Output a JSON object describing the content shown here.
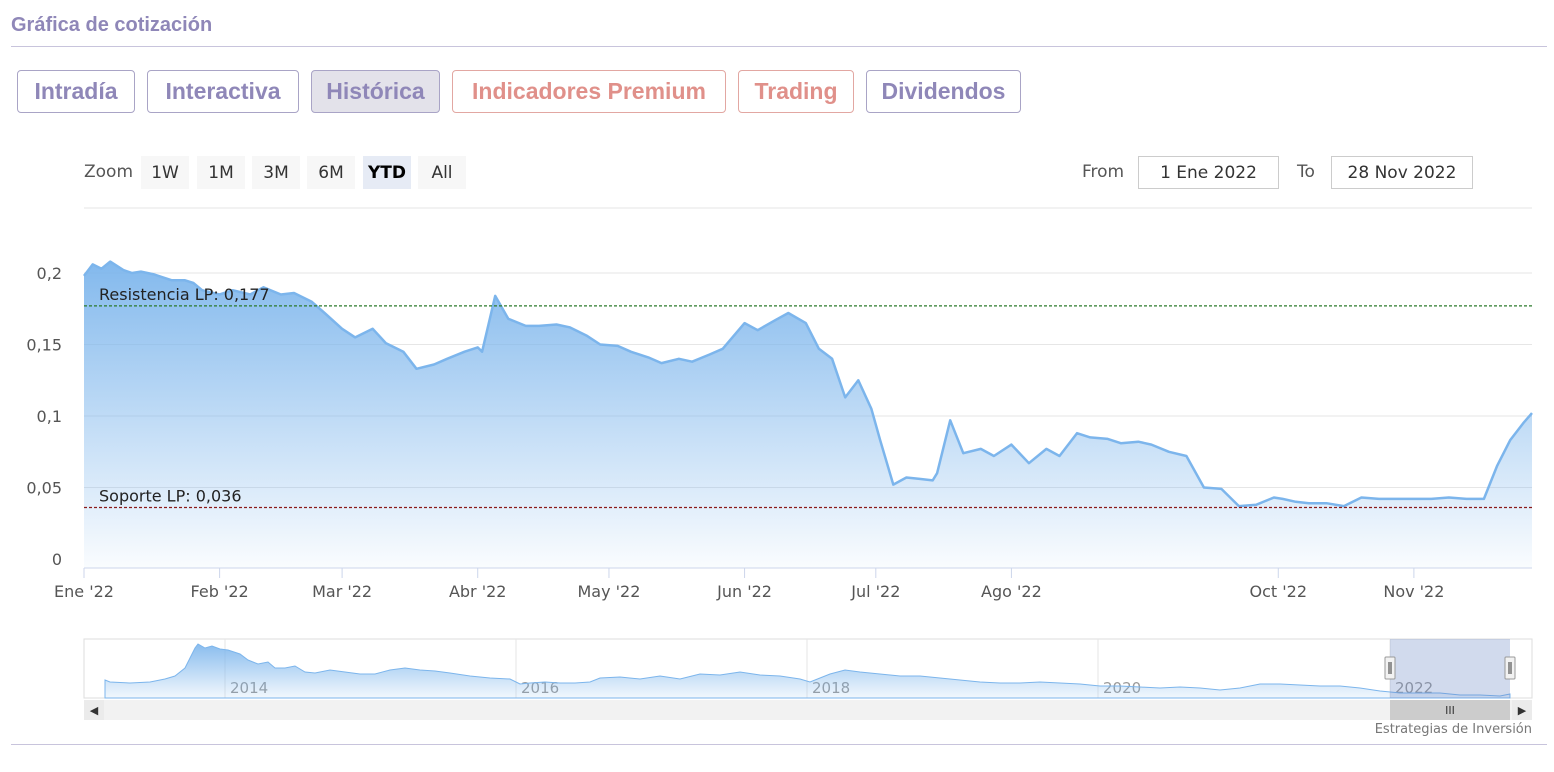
{
  "section": {
    "title": "Gráfica de cotización"
  },
  "tabs": [
    {
      "label": "Intradía",
      "style": "normal"
    },
    {
      "label": "Interactiva",
      "style": "normal"
    },
    {
      "label": "Histórica",
      "style": "active"
    },
    {
      "label": "Indicadores Premium",
      "style": "premium"
    },
    {
      "label": "Trading",
      "style": "premium"
    },
    {
      "label": "Dividendos",
      "style": "normal"
    }
  ],
  "zoom": {
    "label": "Zoom",
    "buttons": [
      "1W",
      "1M",
      "3M",
      "6M",
      "YTD",
      "All"
    ],
    "active": "YTD"
  },
  "range": {
    "from_label": "From",
    "from_value": "1 Ene 2022",
    "to_label": "To",
    "to_value": "28 Nov 2022"
  },
  "navigator": {
    "years": [
      "2014",
      "2016",
      "2018",
      "2020",
      "2022"
    ],
    "scroll_grip": "III"
  },
  "watermark": "Estrategias de Inversión",
  "colors": {
    "accent": "#8f87b8",
    "premium": "#e0908a",
    "series": "#7cb5ec",
    "resistance": "#2b7a2b",
    "support": "#8b1a1a"
  },
  "chart_data": {
    "type": "area",
    "x_start": "2022-01-01",
    "x_end": "2022-11-28",
    "ylim": [
      0,
      0.2
    ],
    "yticks": [
      "0",
      "0,05",
      "0,1",
      "0,15",
      "0,2"
    ],
    "xticks": [
      "Ene '22",
      "Feb '22",
      "Mar '22",
      "Abr '22",
      "May '22",
      "Jun '22",
      "Jul '22",
      "Ago '22",
      "Oct '22",
      "Nov '22"
    ],
    "xtick_dates": [
      "2022-01-01",
      "2022-02-01",
      "2022-03-01",
      "2022-04-01",
      "2022-05-01",
      "2022-06-01",
      "2022-07-01",
      "2022-08-01",
      "2022-10-01",
      "2022-11-01"
    ],
    "grid": true,
    "series": [
      {
        "x": [
          "2022-01-01",
          "2022-01-03",
          "2022-01-05",
          "2022-01-07",
          "2022-01-10",
          "2022-01-12",
          "2022-01-14",
          "2022-01-17",
          "2022-01-19",
          "2022-01-21",
          "2022-01-24",
          "2022-01-26",
          "2022-01-28",
          "2022-02-01",
          "2022-02-04",
          "2022-02-08",
          "2022-02-11",
          "2022-02-15",
          "2022-02-18",
          "2022-02-22",
          "2022-02-25",
          "2022-03-01",
          "2022-03-04",
          "2022-03-08",
          "2022-03-11",
          "2022-03-15",
          "2022-03-18",
          "2022-03-22",
          "2022-03-25",
          "2022-03-29",
          "2022-04-01",
          "2022-04-02",
          "2022-04-05",
          "2022-04-08",
          "2022-04-12",
          "2022-04-15",
          "2022-04-19",
          "2022-04-22",
          "2022-04-26",
          "2022-04-29",
          "2022-05-03",
          "2022-05-06",
          "2022-05-10",
          "2022-05-13",
          "2022-05-17",
          "2022-05-20",
          "2022-05-24",
          "2022-05-27",
          "2022-06-01",
          "2022-06-04",
          "2022-06-08",
          "2022-06-11",
          "2022-06-15",
          "2022-06-18",
          "2022-06-21",
          "2022-06-24",
          "2022-06-27",
          "2022-06-30",
          "2022-07-02",
          "2022-07-05",
          "2022-07-08",
          "2022-07-11",
          "2022-07-14",
          "2022-07-15",
          "2022-07-18",
          "2022-07-21",
          "2022-07-25",
          "2022-07-28",
          "2022-08-01",
          "2022-08-05",
          "2022-08-09",
          "2022-08-12",
          "2022-08-16",
          "2022-08-19",
          "2022-08-23",
          "2022-08-26",
          "2022-08-30",
          "2022-09-02",
          "2022-09-06",
          "2022-09-10",
          "2022-09-14",
          "2022-09-18",
          "2022-09-22",
          "2022-09-26",
          "2022-09-30",
          "2022-10-02",
          "2022-10-05",
          "2022-10-08",
          "2022-10-12",
          "2022-10-16",
          "2022-10-20",
          "2022-10-24",
          "2022-10-28",
          "2022-11-01",
          "2022-11-05",
          "2022-11-09",
          "2022-11-13",
          "2022-11-17",
          "2022-11-20",
          "2022-11-23",
          "2022-11-26",
          "2022-11-28"
        ],
        "y": [
          0.198,
          0.206,
          0.203,
          0.208,
          0.202,
          0.2,
          0.201,
          0.199,
          0.197,
          0.195,
          0.195,
          0.193,
          0.188,
          0.185,
          0.188,
          0.185,
          0.19,
          0.185,
          0.186,
          0.18,
          0.172,
          0.161,
          0.155,
          0.161,
          0.151,
          0.145,
          0.133,
          0.136,
          0.14,
          0.145,
          0.148,
          0.145,
          0.184,
          0.168,
          0.163,
          0.163,
          0.164,
          0.162,
          0.156,
          0.15,
          0.149,
          0.145,
          0.141,
          0.137,
          0.14,
          0.138,
          0.143,
          0.147,
          0.165,
          0.16,
          0.167,
          0.172,
          0.165,
          0.147,
          0.14,
          0.113,
          0.125,
          0.105,
          0.083,
          0.052,
          0.057,
          0.056,
          0.055,
          0.06,
          0.097,
          0.074,
          0.077,
          0.072,
          0.08,
          0.067,
          0.077,
          0.072,
          0.088,
          0.085,
          0.084,
          0.081,
          0.082,
          0.08,
          0.075,
          0.072,
          0.05,
          0.049,
          0.037,
          0.038,
          0.043,
          0.042,
          0.04,
          0.039,
          0.039,
          0.037,
          0.043,
          0.042,
          0.042,
          0.042,
          0.042,
          0.043,
          0.042,
          0.042,
          0.065,
          0.083,
          0.095,
          0.102
        ]
      }
    ],
    "annotations": [
      {
        "label": "Resistencia LP: 0,177",
        "y": 0.177,
        "color": "#2b7a2b"
      },
      {
        "label": "Soporte LP: 0,036",
        "y": 0.036,
        "color": "#8b1a1a"
      }
    ]
  }
}
